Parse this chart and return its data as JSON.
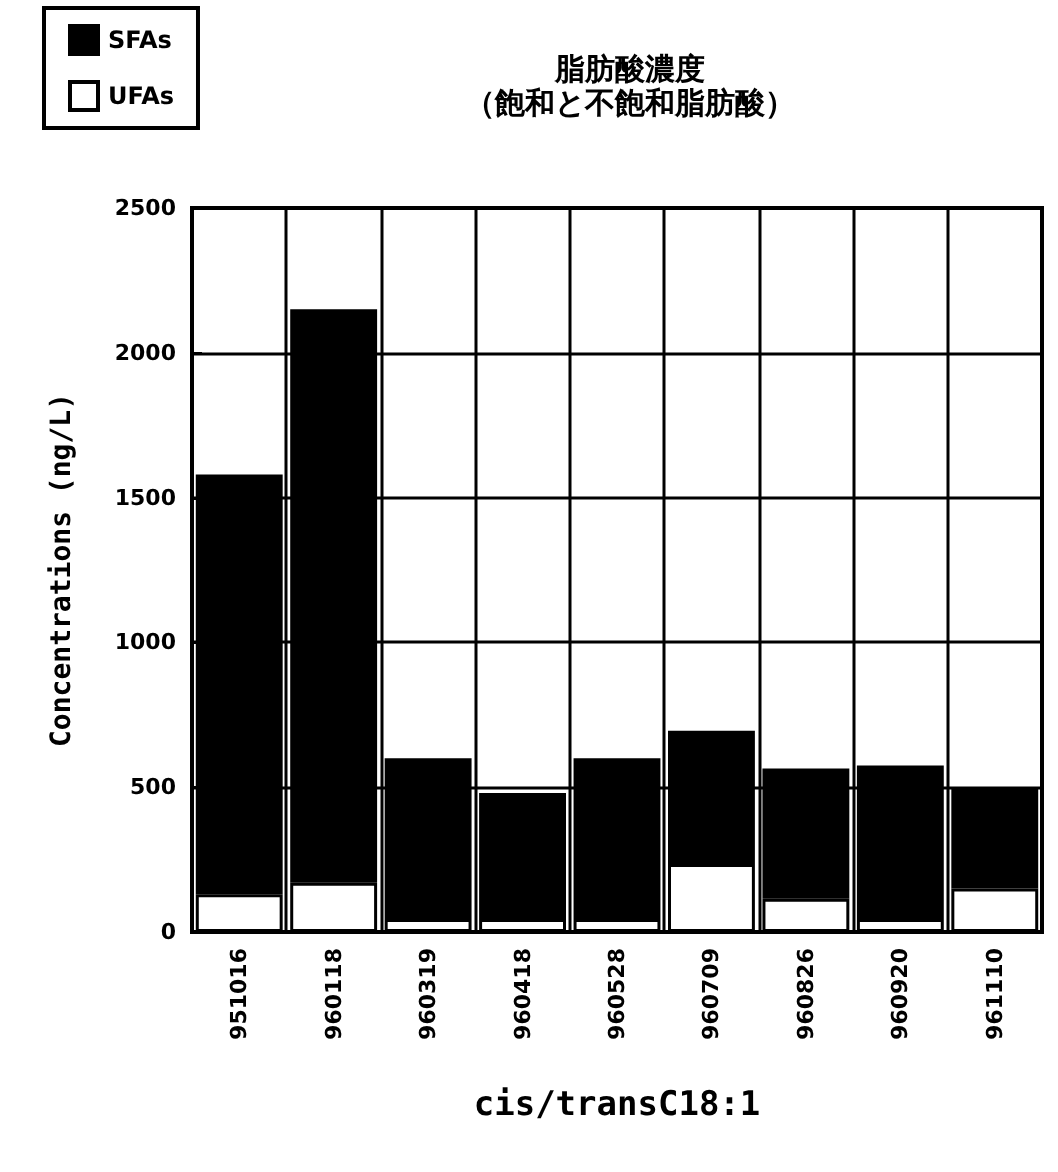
{
  "chart_data": {
    "type": "bar",
    "title": "脂肪酸濃度",
    "subtitle": "（飽和と不飽和脂肪酸）",
    "xlabel": "cis/transC18:1",
    "ylabel": "Concentrations (ng/L)",
    "categories": [
      "951016",
      "960118",
      "960319",
      "960418",
      "960528",
      "960709",
      "960826",
      "960920",
      "961110"
    ],
    "stacked": true,
    "series": [
      {
        "name": "UFAs",
        "color": "#ffffff",
        "values": [
          130,
          170,
          45,
          45,
          45,
          235,
          115,
          45,
          150
        ]
      },
      {
        "name": "SFAs",
        "color": "#000000",
        "values": [
          1450,
          1980,
          555,
          435,
          555,
          460,
          450,
          530,
          350
        ]
      }
    ],
    "ylim": [
      0,
      2500
    ],
    "yticks": [
      0,
      500,
      1000,
      1500,
      2000,
      2500
    ],
    "grid": true,
    "legend": "top left"
  }
}
